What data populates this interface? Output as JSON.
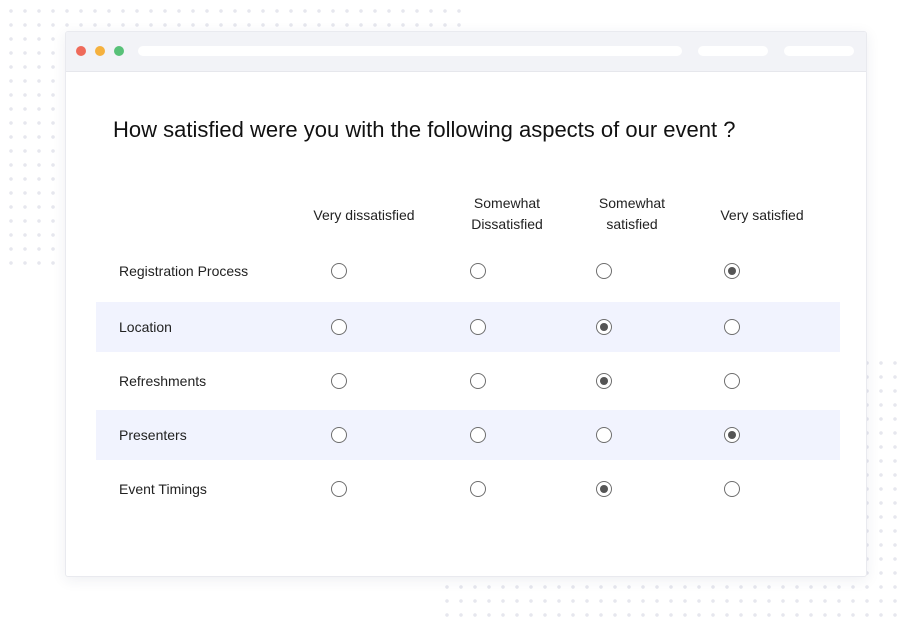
{
  "survey": {
    "question": "How satisfied were you with the following aspects of our event ?",
    "columns": [
      "Very dissatisfied",
      "Somewhat\nDissatisfied",
      "Somewhat\nsatisfied",
      "Very satisfied"
    ],
    "rows": [
      {
        "label": "Registration Process",
        "selected": 3
      },
      {
        "label": "Location",
        "selected": 2
      },
      {
        "label": "Refreshments",
        "selected": 2
      },
      {
        "label": "Presenters",
        "selected": 3
      },
      {
        "label": "Event Timings",
        "selected": 2
      }
    ]
  },
  "colors": {
    "shaded_row": "#f1f3fe",
    "close_light": "#ef6a5a",
    "minimize_light": "#f5b13e",
    "maximize_light": "#58c178"
  }
}
